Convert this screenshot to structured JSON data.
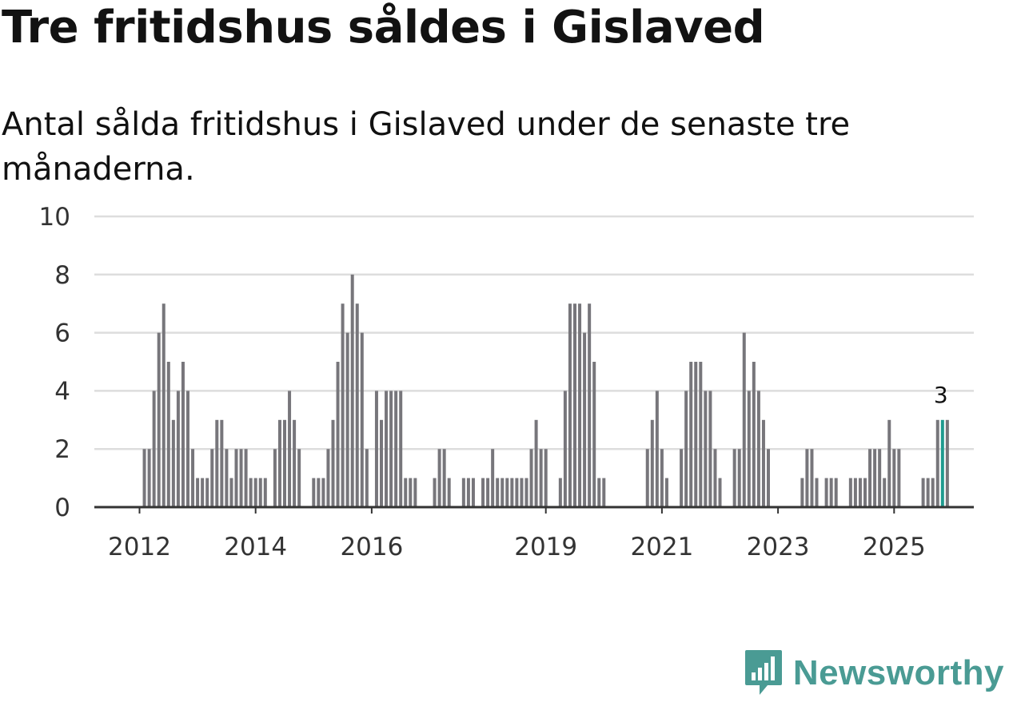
{
  "header": {
    "title": "Tre fritidshus såldes i Gislaved",
    "subtitle": "Antal sålda fritidshus i Gislaved under de senaste tre månaderna."
  },
  "chart_data": {
    "type": "bar",
    "title": "Tre fritidshus såldes i Gislaved",
    "subtitle": "Antal sålda fritidshus i Gislaved under de senaste tre månaderna.",
    "xlabel": "",
    "ylabel": "",
    "ylim": [
      0,
      10
    ],
    "yticks": [
      0,
      2,
      4,
      6,
      8,
      10
    ],
    "xticks": [
      {
        "label": "2012",
        "index": 0
      },
      {
        "label": "2014",
        "index": 24
      },
      {
        "label": "2016",
        "index": 48
      },
      {
        "label": "2019",
        "index": 84
      },
      {
        "label": "2021",
        "index": 108
      },
      {
        "label": "2023",
        "index": 132
      },
      {
        "label": "2025",
        "index": 156
      }
    ],
    "values": [
      0,
      2,
      2,
      4,
      6,
      7,
      5,
      3,
      4,
      5,
      4,
      2,
      1,
      1,
      1,
      2,
      3,
      3,
      2,
      1,
      2,
      2,
      2,
      1,
      1,
      1,
      1,
      0,
      2,
      3,
      3,
      4,
      3,
      2,
      0,
      0,
      1,
      1,
      1,
      2,
      3,
      5,
      7,
      6,
      8,
      7,
      6,
      2,
      0,
      4,
      3,
      4,
      4,
      4,
      4,
      1,
      1,
      1,
      0,
      0,
      0,
      1,
      2,
      2,
      1,
      0,
      0,
      1,
      1,
      1,
      0,
      1,
      1,
      2,
      1,
      1,
      1,
      1,
      1,
      1,
      1,
      2,
      3,
      2,
      2,
      0,
      0,
      1,
      4,
      7,
      7,
      7,
      6,
      7,
      5,
      1,
      1,
      0,
      0,
      0,
      0,
      0,
      0,
      0,
      0,
      2,
      3,
      4,
      2,
      1,
      0,
      0,
      2,
      4,
      5,
      5,
      5,
      4,
      4,
      2,
      1,
      0,
      0,
      2,
      2,
      6,
      4,
      5,
      4,
      3,
      2,
      0,
      0,
      0,
      0,
      0,
      0,
      1,
      2,
      2,
      1,
      0,
      1,
      1,
      1,
      0,
      0,
      1,
      1,
      1,
      1,
      2,
      2,
      2,
      1,
      3,
      2,
      2,
      0,
      0,
      0,
      0,
      1,
      1,
      1,
      3,
      3,
      3
    ],
    "highlight_index": 166,
    "annotation": {
      "index": 166,
      "label": "3"
    },
    "colors": {
      "bar": "#77767b",
      "highlight": "#1f9b8f",
      "grid": "#dddddd",
      "axis": "#333333"
    }
  },
  "logo": {
    "text": "Newsworthy",
    "icon": "newsworthy-chart-icon",
    "color": "#4a9b94"
  }
}
